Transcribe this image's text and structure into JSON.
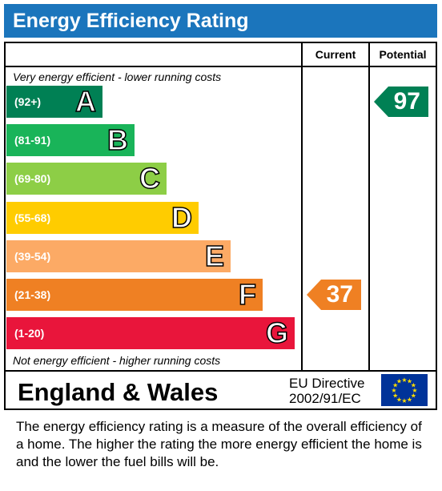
{
  "header": {
    "title": "Energy Efficiency Rating"
  },
  "columns": {
    "current": "Current",
    "potential": "Potential"
  },
  "captions": {
    "top": "Very energy efficient - lower running costs",
    "bottom": "Not energy efficient - higher running costs"
  },
  "footer": {
    "country": "England & Wales",
    "directive_line1": "EU Directive",
    "directive_line2": "2002/91/EC"
  },
  "description": "The energy efficiency rating is a measure of the overall efficiency of a home.  The higher the rating the more energy efficient the home is and the lower the fuel bills will be.",
  "chart_data": {
    "type": "bar",
    "title": "Energy Efficiency Rating",
    "bands": [
      {
        "letter": "A",
        "range": "(92+)",
        "color": "#008054",
        "rank": 1
      },
      {
        "letter": "B",
        "range": "(81-91)",
        "color": "#19b459",
        "rank": 2
      },
      {
        "letter": "C",
        "range": "(69-80)",
        "color": "#8dce46",
        "rank": 3
      },
      {
        "letter": "D",
        "range": "(55-68)",
        "color": "#ffcc00",
        "rank": 4
      },
      {
        "letter": "E",
        "range": "(39-54)",
        "color": "#fcaa65",
        "rank": 5
      },
      {
        "letter": "F",
        "range": "(21-38)",
        "color": "#ef8023",
        "rank": 6
      },
      {
        "letter": "G",
        "range": "(1-20)",
        "color": "#e9153b",
        "rank": 7
      }
    ],
    "current": {
      "value": 37,
      "band": "F",
      "color": "#ef8023"
    },
    "potential": {
      "value": 97,
      "band": "A",
      "color": "#008054"
    }
  }
}
